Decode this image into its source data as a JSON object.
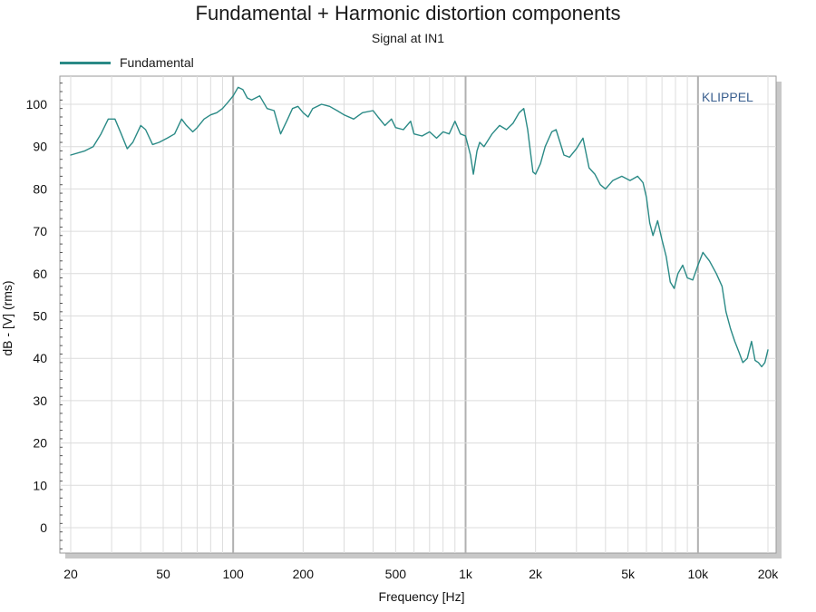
{
  "chart_data": {
    "type": "line",
    "title": "Fundamental + Harmonic distortion components",
    "subtitle": "Signal at IN1",
    "xlabel": "Frequency [Hz]",
    "ylabel": "dB - [V] (rms)",
    "x_scale": "log",
    "xlim": [
      20,
      20000
    ],
    "ylim": [
      -6,
      106
    ],
    "x_ticks": [
      {
        "value": 20,
        "label": "20"
      },
      {
        "value": 50,
        "label": "50"
      },
      {
        "value": 100,
        "label": "100"
      },
      {
        "value": 200,
        "label": "200"
      },
      {
        "value": 500,
        "label": "500"
      },
      {
        "value": 1000,
        "label": "1k"
      },
      {
        "value": 2000,
        "label": "2k"
      },
      {
        "value": 5000,
        "label": "5k"
      },
      {
        "value": 10000,
        "label": "10k"
      },
      {
        "value": 20000,
        "label": "20k"
      }
    ],
    "y_ticks": [
      0,
      10,
      20,
      30,
      40,
      50,
      60,
      70,
      80,
      90,
      100
    ],
    "grid": true,
    "legend_position": "top-left",
    "series": [
      {
        "name": "Fundamental",
        "color": "#2a8a86",
        "points": [
          [
            20,
            88
          ],
          [
            23,
            89
          ],
          [
            25,
            90
          ],
          [
            27,
            93
          ],
          [
            29,
            96.5
          ],
          [
            31,
            96.5
          ],
          [
            33,
            93
          ],
          [
            35,
            89.5
          ],
          [
            37,
            91
          ],
          [
            40,
            95
          ],
          [
            42,
            94
          ],
          [
            45,
            90.5
          ],
          [
            48,
            91
          ],
          [
            52,
            92
          ],
          [
            56,
            93
          ],
          [
            60,
            96.5
          ],
          [
            63,
            95
          ],
          [
            67,
            93.5
          ],
          [
            70,
            94.5
          ],
          [
            75,
            96.5
          ],
          [
            80,
            97.5
          ],
          [
            85,
            98
          ],
          [
            90,
            99
          ],
          [
            95,
            100.5
          ],
          [
            100,
            102
          ],
          [
            105,
            104
          ],
          [
            110,
            103.5
          ],
          [
            115,
            101.5
          ],
          [
            120,
            101
          ],
          [
            125,
            101.5
          ],
          [
            130,
            102
          ],
          [
            140,
            99
          ],
          [
            150,
            98.5
          ],
          [
            160,
            93
          ],
          [
            170,
            96
          ],
          [
            180,
            99
          ],
          [
            190,
            99.5
          ],
          [
            200,
            98
          ],
          [
            210,
            97
          ],
          [
            220,
            99
          ],
          [
            240,
            100
          ],
          [
            260,
            99.5
          ],
          [
            280,
            98.5
          ],
          [
            300,
            97.5
          ],
          [
            330,
            96.5
          ],
          [
            360,
            98
          ],
          [
            400,
            98.5
          ],
          [
            420,
            97
          ],
          [
            450,
            95
          ],
          [
            480,
            96.5
          ],
          [
            500,
            94.5
          ],
          [
            540,
            94
          ],
          [
            580,
            96
          ],
          [
            600,
            93
          ],
          [
            650,
            92.5
          ],
          [
            700,
            93.5
          ],
          [
            750,
            92
          ],
          [
            800,
            93.5
          ],
          [
            850,
            93
          ],
          [
            900,
            96
          ],
          [
            950,
            93
          ],
          [
            1000,
            92.5
          ],
          [
            1050,
            88
          ],
          [
            1080,
            83.5
          ],
          [
            1120,
            89
          ],
          [
            1150,
            91
          ],
          [
            1200,
            90
          ],
          [
            1300,
            93
          ],
          [
            1400,
            95
          ],
          [
            1500,
            94
          ],
          [
            1600,
            95.5
          ],
          [
            1700,
            98
          ],
          [
            1780,
            99
          ],
          [
            1850,
            94
          ],
          [
            1950,
            84
          ],
          [
            2000,
            83.5
          ],
          [
            2100,
            86
          ],
          [
            2200,
            90
          ],
          [
            2350,
            93.5
          ],
          [
            2450,
            94
          ],
          [
            2550,
            91
          ],
          [
            2650,
            88
          ],
          [
            2800,
            87.5
          ],
          [
            3000,
            89.5
          ],
          [
            3200,
            92
          ],
          [
            3400,
            85
          ],
          [
            3600,
            83.5
          ],
          [
            3800,
            81
          ],
          [
            4000,
            80
          ],
          [
            4300,
            82
          ],
          [
            4700,
            83
          ],
          [
            5100,
            82
          ],
          [
            5500,
            83
          ],
          [
            5800,
            81.5
          ],
          [
            6000,
            78
          ],
          [
            6200,
            72
          ],
          [
            6400,
            69
          ],
          [
            6700,
            72.5
          ],
          [
            7000,
            68
          ],
          [
            7300,
            64
          ],
          [
            7600,
            58
          ],
          [
            7900,
            56.5
          ],
          [
            8200,
            60
          ],
          [
            8600,
            62
          ],
          [
            9000,
            59
          ],
          [
            9500,
            58.5
          ],
          [
            10000,
            62
          ],
          [
            10500,
            65
          ],
          [
            11200,
            63
          ],
          [
            12000,
            60
          ],
          [
            12700,
            57
          ],
          [
            13200,
            51
          ],
          [
            13800,
            47
          ],
          [
            14400,
            44
          ],
          [
            15000,
            41.5
          ],
          [
            15600,
            39
          ],
          [
            16300,
            40
          ],
          [
            17000,
            44
          ],
          [
            17600,
            39.5
          ],
          [
            18200,
            39
          ],
          [
            18800,
            38
          ],
          [
            19400,
            39
          ],
          [
            20000,
            42
          ]
        ]
      }
    ]
  },
  "watermark": "KLIPPEL"
}
